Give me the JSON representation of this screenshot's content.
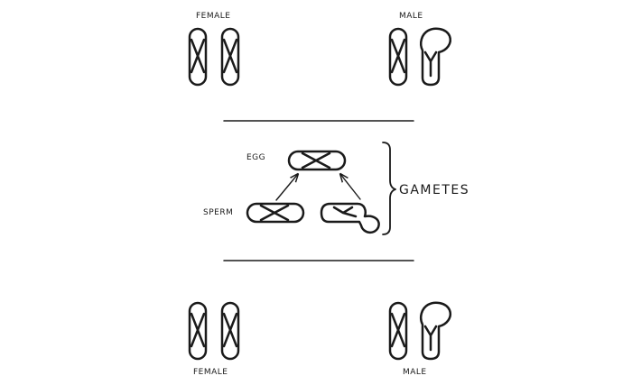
{
  "labels": {
    "top_female": "FEMALE",
    "top_male": "MALE",
    "egg": "EGG",
    "sperm": "SPERM",
    "gametes": "GAMETES",
    "bottom_female": "FEMALE",
    "bottom_male": "MALE"
  },
  "colors": {
    "ink": "#1a1a1a",
    "background": "#ffffff"
  }
}
